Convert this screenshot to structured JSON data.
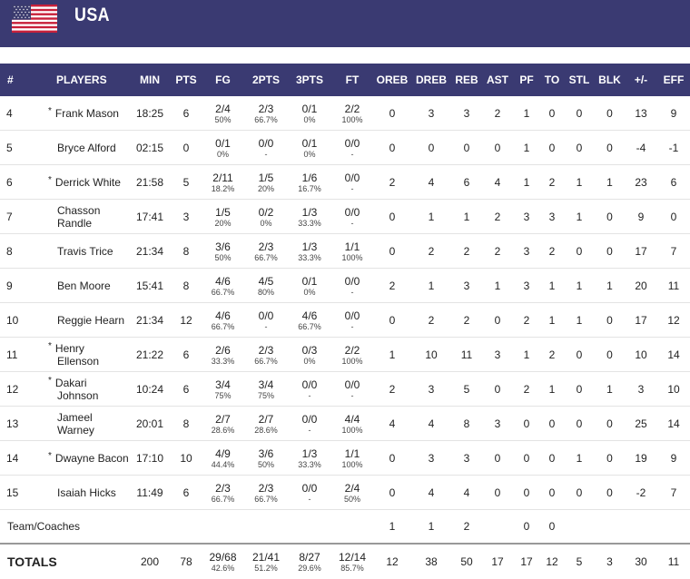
{
  "team": {
    "name": "USA",
    "flag_icon": "usa-flag-icon"
  },
  "columns": [
    "#",
    "PLAYERS",
    "MIN",
    "PTS",
    "FG",
    "2PTS",
    "3PTS",
    "FT",
    "OREB",
    "DREB",
    "REB",
    "AST",
    "PF",
    "TO",
    "STL",
    "BLK",
    "+/-",
    "EFF"
  ],
  "players": [
    {
      "num": "4",
      "starter": true,
      "name": "Frank Mason",
      "min": "18:25",
      "pts": "6",
      "fg": [
        "2/4",
        "50%"
      ],
      "p2": [
        "2/3",
        "66.7%"
      ],
      "p3": [
        "0/1",
        "0%"
      ],
      "ft": [
        "2/2",
        "100%"
      ],
      "oreb": "0",
      "dreb": "3",
      "reb": "3",
      "ast": "2",
      "pf": "1",
      "to": "0",
      "stl": "0",
      "blk": "0",
      "pm": "13",
      "eff": "9"
    },
    {
      "num": "5",
      "starter": false,
      "name": "Bryce Alford",
      "min": "02:15",
      "pts": "0",
      "fg": [
        "0/1",
        "0%"
      ],
      "p2": [
        "0/0",
        "-"
      ],
      "p3": [
        "0/1",
        "0%"
      ],
      "ft": [
        "0/0",
        "-"
      ],
      "oreb": "0",
      "dreb": "0",
      "reb": "0",
      "ast": "0",
      "pf": "1",
      "to": "0",
      "stl": "0",
      "blk": "0",
      "pm": "-4",
      "eff": "-1"
    },
    {
      "num": "6",
      "starter": true,
      "name": "Derrick White",
      "min": "21:58",
      "pts": "5",
      "fg": [
        "2/11",
        "18.2%"
      ],
      "p2": [
        "1/5",
        "20%"
      ],
      "p3": [
        "1/6",
        "16.7%"
      ],
      "ft": [
        "0/0",
        "-"
      ],
      "oreb": "2",
      "dreb": "4",
      "reb": "6",
      "ast": "4",
      "pf": "1",
      "to": "2",
      "stl": "1",
      "blk": "1",
      "pm": "23",
      "eff": "6"
    },
    {
      "num": "7",
      "starter": false,
      "name": "Chasson Randle",
      "min": "17:41",
      "pts": "3",
      "fg": [
        "1/5",
        "20%"
      ],
      "p2": [
        "0/2",
        "0%"
      ],
      "p3": [
        "1/3",
        "33.3%"
      ],
      "ft": [
        "0/0",
        "-"
      ],
      "oreb": "0",
      "dreb": "1",
      "reb": "1",
      "ast": "2",
      "pf": "3",
      "to": "3",
      "stl": "1",
      "blk": "0",
      "pm": "9",
      "eff": "0"
    },
    {
      "num": "8",
      "starter": false,
      "name": "Travis Trice",
      "min": "21:34",
      "pts": "8",
      "fg": [
        "3/6",
        "50%"
      ],
      "p2": [
        "2/3",
        "66.7%"
      ],
      "p3": [
        "1/3",
        "33.3%"
      ],
      "ft": [
        "1/1",
        "100%"
      ],
      "oreb": "0",
      "dreb": "2",
      "reb": "2",
      "ast": "2",
      "pf": "3",
      "to": "2",
      "stl": "0",
      "blk": "0",
      "pm": "17",
      "eff": "7"
    },
    {
      "num": "9",
      "starter": false,
      "name": "Ben Moore",
      "min": "15:41",
      "pts": "8",
      "fg": [
        "4/6",
        "66.7%"
      ],
      "p2": [
        "4/5",
        "80%"
      ],
      "p3": [
        "0/1",
        "0%"
      ],
      "ft": [
        "0/0",
        "-"
      ],
      "oreb": "2",
      "dreb": "1",
      "reb": "3",
      "ast": "1",
      "pf": "3",
      "to": "1",
      "stl": "1",
      "blk": "1",
      "pm": "20",
      "eff": "11"
    },
    {
      "num": "10",
      "starter": false,
      "name": "Reggie Hearn",
      "min": "21:34",
      "pts": "12",
      "fg": [
        "4/6",
        "66.7%"
      ],
      "p2": [
        "0/0",
        "-"
      ],
      "p3": [
        "4/6",
        "66.7%"
      ],
      "ft": [
        "0/0",
        "-"
      ],
      "oreb": "0",
      "dreb": "2",
      "reb": "2",
      "ast": "0",
      "pf": "2",
      "to": "1",
      "stl": "1",
      "blk": "0",
      "pm": "17",
      "eff": "12"
    },
    {
      "num": "11",
      "starter": true,
      "name": "Henry Ellenson",
      "min": "21:22",
      "pts": "6",
      "fg": [
        "2/6",
        "33.3%"
      ],
      "p2": [
        "2/3",
        "66.7%"
      ],
      "p3": [
        "0/3",
        "0%"
      ],
      "ft": [
        "2/2",
        "100%"
      ],
      "oreb": "1",
      "dreb": "10",
      "reb": "11",
      "ast": "3",
      "pf": "1",
      "to": "2",
      "stl": "0",
      "blk": "0",
      "pm": "10",
      "eff": "14"
    },
    {
      "num": "12",
      "starter": true,
      "name": "Dakari Johnson",
      "min": "10:24",
      "pts": "6",
      "fg": [
        "3/4",
        "75%"
      ],
      "p2": [
        "3/4",
        "75%"
      ],
      "p3": [
        "0/0",
        "-"
      ],
      "ft": [
        "0/0",
        "-"
      ],
      "oreb": "2",
      "dreb": "3",
      "reb": "5",
      "ast": "0",
      "pf": "2",
      "to": "1",
      "stl": "0",
      "blk": "1",
      "pm": "3",
      "eff": "10"
    },
    {
      "num": "13",
      "starter": false,
      "name": "Jameel Warney",
      "min": "20:01",
      "pts": "8",
      "fg": [
        "2/7",
        "28.6%"
      ],
      "p2": [
        "2/7",
        "28.6%"
      ],
      "p3": [
        "0/0",
        "-"
      ],
      "ft": [
        "4/4",
        "100%"
      ],
      "oreb": "4",
      "dreb": "4",
      "reb": "8",
      "ast": "3",
      "pf": "0",
      "to": "0",
      "stl": "0",
      "blk": "0",
      "pm": "25",
      "eff": "14"
    },
    {
      "num": "14",
      "starter": true,
      "name": "Dwayne Bacon",
      "min": "17:10",
      "pts": "10",
      "fg": [
        "4/9",
        "44.4%"
      ],
      "p2": [
        "3/6",
        "50%"
      ],
      "p3": [
        "1/3",
        "33.3%"
      ],
      "ft": [
        "1/1",
        "100%"
      ],
      "oreb": "0",
      "dreb": "3",
      "reb": "3",
      "ast": "0",
      "pf": "0",
      "to": "0",
      "stl": "1",
      "blk": "0",
      "pm": "19",
      "eff": "9"
    },
    {
      "num": "15",
      "starter": false,
      "name": "Isaiah Hicks",
      "min": "11:49",
      "pts": "6",
      "fg": [
        "2/3",
        "66.7%"
      ],
      "p2": [
        "2/3",
        "66.7%"
      ],
      "p3": [
        "0/0",
        "-"
      ],
      "ft": [
        "2/4",
        "50%"
      ],
      "oreb": "0",
      "dreb": "4",
      "reb": "4",
      "ast": "0",
      "pf": "0",
      "to": "0",
      "stl": "0",
      "blk": "0",
      "pm": "-2",
      "eff": "7"
    }
  ],
  "team_coaches": {
    "label": "Team/Coaches",
    "oreb": "1",
    "dreb": "1",
    "reb": "2",
    "pf": "0",
    "to": "0"
  },
  "totals": {
    "label": "TOTALS",
    "min": "200",
    "pts": "78",
    "fg": [
      "29/68",
      "42.6%"
    ],
    "p2": [
      "21/41",
      "51.2%"
    ],
    "p3": [
      "8/27",
      "29.6%"
    ],
    "ft": [
      "12/14",
      "85.7%"
    ],
    "oreb": "12",
    "dreb": "38",
    "reb": "50",
    "ast": "17",
    "pf": "17",
    "to": "12",
    "stl": "5",
    "blk": "3",
    "pm": "30",
    "eff": "11"
  },
  "colors": {
    "header_bg": "#3a3a72",
    "row_border": "#e3e3e3"
  }
}
